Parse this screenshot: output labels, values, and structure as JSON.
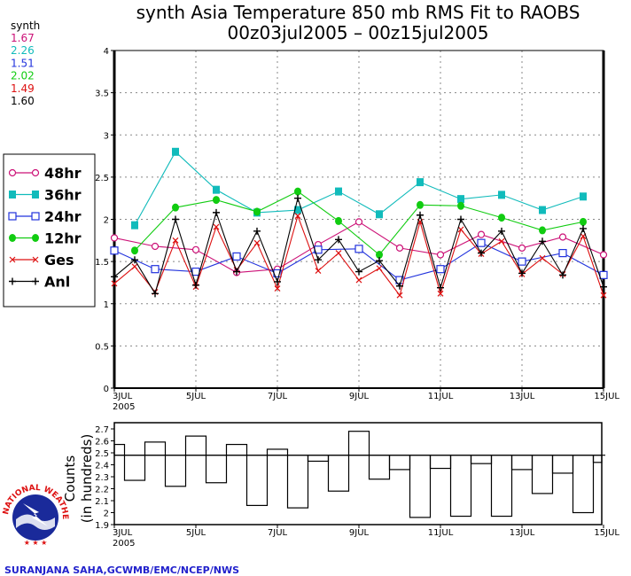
{
  "header": {
    "title_line1": "synth Asia Temperature 850 mb RMS Fit to RAOBS",
    "title_line2": "00z03jul2005 – 00z15jul2005"
  },
  "stats": {
    "label": "synth",
    "values": [
      {
        "text": "1.67",
        "color": "#cc1177"
      },
      {
        "text": "2.26",
        "color": "#11bbbb"
      },
      {
        "text": "1.51",
        "color": "#2233dd"
      },
      {
        "text": "2.02",
        "color": "#11cc11"
      },
      {
        "text": "1.49",
        "color": "#dd1111"
      },
      {
        "text": "1.60",
        "color": "#000000"
      }
    ]
  },
  "logo": {
    "name": "NATIONAL WEATHER SERVICE"
  },
  "credit": "SURANJANA SAHA,GCWMB/EMC/NCEP/NWS",
  "chart_data": [
    {
      "type": "line",
      "title": "synth Asia Temperature 850 mb RMS Fit to RAOBS",
      "subtitle": "00z03jul2005 - 00z15jul2005",
      "xlabel": "",
      "ylabel": "",
      "x": [
        "00z03jul",
        "12z03jul",
        "00z04jul",
        "12z04jul",
        "00z05jul",
        "12z05jul",
        "00z06jul",
        "12z06jul",
        "00z07jul",
        "12z07jul",
        "00z08jul",
        "12z08jul",
        "00z09jul",
        "12z09jul",
        "00z10jul",
        "12z10jul",
        "00z11jul",
        "12z11jul",
        "00z12jul",
        "12z12jul",
        "00z13jul",
        "12z13jul",
        "00z14jul",
        "12z14jul",
        "00z15jul"
      ],
      "xlim_steps": [
        0,
        24
      ],
      "x_tick_labels": [
        {
          "step": 0,
          "label": "3JUL",
          "sub": "2005"
        },
        {
          "step": 4,
          "label": "5JUL"
        },
        {
          "step": 8,
          "label": "7JUL"
        },
        {
          "step": 12,
          "label": "9JUL"
        },
        {
          "step": 16,
          "label": "11JUL"
        },
        {
          "step": 20,
          "label": "13JUL"
        },
        {
          "step": 24,
          "label": "15JUL"
        }
      ],
      "ylim": [
        0,
        4
      ],
      "y_ticks": [
        "0",
        "0.5",
        "1",
        "1.5",
        "2",
        "2.5",
        "3",
        "3.5",
        "4"
      ],
      "grid": true,
      "legend_position": "left",
      "series": [
        {
          "name": "48hr",
          "color": "#cc1177",
          "marker": "open-circle",
          "values": [
            1.78,
            null,
            1.68,
            null,
            1.64,
            null,
            1.37,
            null,
            1.41,
            null,
            1.7,
            null,
            1.97,
            null,
            1.66,
            null,
            1.58,
            null,
            1.82,
            null,
            1.66,
            null,
            1.79,
            null,
            1.58
          ]
        },
        {
          "name": "36hr",
          "color": "#11bbbb",
          "marker": "filled-square",
          "values": [
            null,
            1.93,
            null,
            2.8,
            null,
            2.35,
            null,
            2.08,
            null,
            2.11,
            null,
            2.33,
            null,
            2.06,
            null,
            2.44,
            null,
            2.24,
            null,
            2.29,
            null,
            2.11,
            null,
            2.27,
            null
          ]
        },
        {
          "name": "24hr",
          "color": "#2233dd",
          "marker": "open-square",
          "values": [
            1.63,
            null,
            1.41,
            null,
            1.38,
            null,
            1.56,
            null,
            1.36,
            null,
            1.64,
            null,
            1.65,
            null,
            1.28,
            null,
            1.41,
            null,
            1.72,
            null,
            1.5,
            null,
            1.6,
            null,
            1.34
          ]
        },
        {
          "name": "12hr",
          "color": "#11cc11",
          "marker": "filled-circle",
          "values": [
            null,
            1.63,
            null,
            2.14,
            null,
            2.23,
            null,
            2.09,
            null,
            2.33,
            null,
            1.98,
            null,
            1.58,
            null,
            2.17,
            null,
            2.16,
            null,
            2.02,
            null,
            1.87,
            null,
            1.97,
            null
          ]
        },
        {
          "name": "Ges",
          "color": "#dd1111",
          "marker": "x",
          "values": [
            1.24,
            1.44,
            1.14,
            1.75,
            1.2,
            1.91,
            1.4,
            1.72,
            1.18,
            2.04,
            1.39,
            1.6,
            1.28,
            1.42,
            1.1,
            1.97,
            1.12,
            1.88,
            1.59,
            1.74,
            1.35,
            1.54,
            1.35,
            1.8,
            1.1
          ]
        },
        {
          "name": "Anl",
          "color": "#000000",
          "marker": "plus",
          "values": [
            1.32,
            1.52,
            1.12,
            2.0,
            1.22,
            2.08,
            1.38,
            1.86,
            1.26,
            2.25,
            1.52,
            1.76,
            1.38,
            1.51,
            1.21,
            2.05,
            1.19,
            2.0,
            1.6,
            1.86,
            1.36,
            1.74,
            1.34,
            1.89,
            1.2
          ]
        }
      ]
    },
    {
      "type": "bar",
      "title": "",
      "ylabel": "Counts (in hundreds)",
      "ylabel_line1": "Counts",
      "ylabel_line2": "(in hundreds)",
      "x": [
        "00z03jul",
        "12z03jul",
        "00z04jul",
        "12z04jul",
        "00z05jul",
        "12z05jul",
        "00z06jul",
        "12z06jul",
        "00z07jul",
        "12z07jul",
        "00z08jul",
        "12z08jul",
        "00z09jul",
        "12z09jul",
        "00z10jul",
        "12z10jul",
        "00z11jul",
        "12z11jul",
        "00z12jul",
        "12z12jul",
        "00z13jul",
        "12z13jul",
        "00z14jul",
        "12z14jul",
        "00z15jul"
      ],
      "values": [
        2.57,
        2.27,
        2.59,
        2.22,
        2.64,
        2.25,
        2.57,
        2.06,
        2.53,
        2.04,
        2.43,
        2.18,
        2.68,
        2.28,
        2.36,
        1.96,
        2.37,
        1.97,
        2.41,
        1.97,
        2.36,
        2.16,
        2.33,
        2.0,
        2.42
      ],
      "mean": 2.48,
      "ylim": [
        1.9,
        2.7
      ],
      "y_ticks": [
        "1.9",
        "2",
        "2.1",
        "2.2",
        "2.3",
        "2.4",
        "2.5",
        "2.6",
        "2.7"
      ],
      "x_tick_labels": [
        {
          "step": 0,
          "label": "3JUL",
          "sub": "2005"
        },
        {
          "step": 4,
          "label": "5JUL"
        },
        {
          "step": 8,
          "label": "7JUL"
        },
        {
          "step": 12,
          "label": "9JUL"
        },
        {
          "step": 16,
          "label": "11JUL"
        },
        {
          "step": 20,
          "label": "13JUL"
        },
        {
          "step": 24,
          "label": "15JUL"
        }
      ],
      "style": "step"
    }
  ]
}
